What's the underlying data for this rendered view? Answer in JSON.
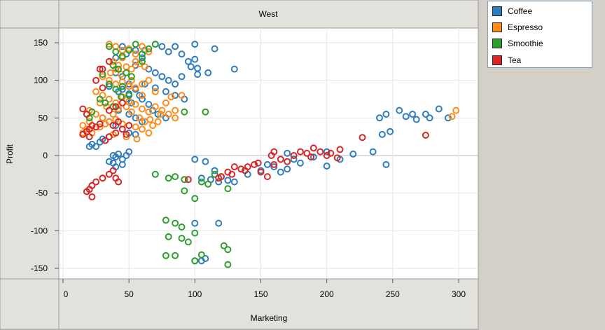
{
  "chart_data": {
    "type": "scatter",
    "title": "West",
    "xlabel": "Marketing",
    "ylabel": "Profit",
    "xlim": [
      0,
      310
    ],
    "ylim": [
      -155,
      155
    ],
    "x_ticks": [
      0,
      50,
      100,
      150,
      200,
      250,
      300
    ],
    "y_ticks": [
      -150,
      -100,
      -50,
      0,
      50,
      100,
      150
    ],
    "grid": true,
    "legend_position": "top-right-outside",
    "series": [
      {
        "name": "Coffee",
        "color": "#2e7dbd",
        "points": [
          [
            45,
            145
          ],
          [
            55,
            140
          ],
          [
            60,
            130
          ],
          [
            75,
            145
          ],
          [
            80,
            138
          ],
          [
            85,
            145
          ],
          [
            90,
            135
          ],
          [
            100,
            148
          ],
          [
            115,
            142
          ],
          [
            95,
            125
          ],
          [
            97,
            118
          ],
          [
            100,
            128
          ],
          [
            102,
            108
          ],
          [
            110,
            110
          ],
          [
            130,
            115
          ],
          [
            55,
            120
          ],
          [
            65,
            115
          ],
          [
            70,
            110
          ],
          [
            75,
            105
          ],
          [
            80,
            100
          ],
          [
            85,
            95
          ],
          [
            90,
            105
          ],
          [
            62,
            95
          ],
          [
            70,
            90
          ],
          [
            78,
            85
          ],
          [
            85,
            80
          ],
          [
            92,
            75
          ],
          [
            40,
            110
          ],
          [
            45,
            105
          ],
          [
            50,
            95
          ],
          [
            55,
            88
          ],
          [
            42,
            85
          ],
          [
            48,
            75
          ],
          [
            52,
            70
          ],
          [
            60,
            75
          ],
          [
            65,
            68
          ],
          [
            68,
            60
          ],
          [
            72,
            55
          ],
          [
            78,
            50
          ],
          [
            38,
            65
          ],
          [
            42,
            60
          ],
          [
            50,
            55
          ],
          [
            55,
            50
          ],
          [
            60,
            45
          ],
          [
            30,
            50
          ],
          [
            35,
            45
          ],
          [
            40,
            40
          ],
          [
            45,
            35
          ],
          [
            50,
            30
          ],
          [
            55,
            28
          ],
          [
            22,
            15
          ],
          [
            25,
            12
          ],
          [
            28,
            18
          ],
          [
            30,
            22
          ],
          [
            35,
            25
          ],
          [
            20,
            12
          ],
          [
            38,
            0
          ],
          [
            40,
            -2
          ],
          [
            42,
            2
          ],
          [
            45,
            -5
          ],
          [
            48,
            0
          ],
          [
            50,
            5
          ],
          [
            38,
            -10
          ],
          [
            40,
            -15
          ],
          [
            45,
            -12
          ],
          [
            35,
            -8
          ],
          [
            100,
            -5
          ],
          [
            108,
            -8
          ],
          [
            115,
            -20
          ],
          [
            120,
            -28
          ],
          [
            125,
            -33
          ],
          [
            105,
            -30
          ],
          [
            112,
            -32
          ],
          [
            118,
            -35
          ],
          [
            130,
            -35
          ],
          [
            140,
            -25
          ],
          [
            150,
            -20
          ],
          [
            160,
            -15
          ],
          [
            170,
            -18
          ],
          [
            165,
            -22
          ],
          [
            175,
            -5
          ],
          [
            180,
            -10
          ],
          [
            190,
            -2
          ],
          [
            200,
            5
          ],
          [
            210,
            -5
          ],
          [
            220,
            2
          ],
          [
            235,
            5
          ],
          [
            245,
            -12
          ],
          [
            170,
            3
          ],
          [
            155,
            -12
          ],
          [
            200,
            -14
          ],
          [
            100,
            -90
          ],
          [
            118,
            -90
          ],
          [
            100,
            -140
          ],
          [
            105,
            -140
          ],
          [
            108,
            -137
          ],
          [
            240,
            50
          ],
          [
            245,
            55
          ],
          [
            255,
            60
          ],
          [
            260,
            52
          ],
          [
            265,
            55
          ],
          [
            268,
            48
          ],
          [
            275,
            55
          ],
          [
            278,
            50
          ],
          [
            285,
            62
          ],
          [
            292,
            50
          ],
          [
            242,
            28
          ],
          [
            248,
            32
          ],
          [
            45,
            88
          ],
          [
            50,
            82
          ],
          [
            58,
            80
          ],
          [
            35,
            92
          ],
          [
            40,
            130
          ],
          [
            48,
            135
          ],
          [
            62,
            140
          ],
          [
            70,
            148
          ],
          [
            102,
            116
          ]
        ]
      },
      {
        "name": "Espresso",
        "color": "#ff8c1a",
        "points": [
          [
            35,
            148
          ],
          [
            40,
            145
          ],
          [
            45,
            140
          ],
          [
            50,
            142
          ],
          [
            55,
            135
          ],
          [
            60,
            145
          ],
          [
            65,
            138
          ],
          [
            38,
            125
          ],
          [
            42,
            120
          ],
          [
            48,
            118
          ],
          [
            52,
            115
          ],
          [
            58,
            122
          ],
          [
            62,
            118
          ],
          [
            30,
            105
          ],
          [
            35,
            100
          ],
          [
            40,
            95
          ],
          [
            45,
            98
          ],
          [
            50,
            92
          ],
          [
            55,
            90
          ],
          [
            60,
            95
          ],
          [
            65,
            100
          ],
          [
            25,
            85
          ],
          [
            30,
            80
          ],
          [
            35,
            75
          ],
          [
            40,
            70
          ],
          [
            45,
            78
          ],
          [
            50,
            72
          ],
          [
            55,
            68
          ],
          [
            60,
            62
          ],
          [
            65,
            58
          ],
          [
            70,
            65
          ],
          [
            75,
            60
          ],
          [
            80,
            55
          ],
          [
            85,
            50
          ],
          [
            20,
            60
          ],
          [
            25,
            55
          ],
          [
            30,
            50
          ],
          [
            35,
            45
          ],
          [
            40,
            48
          ],
          [
            45,
            42
          ],
          [
            50,
            40
          ],
          [
            55,
            38
          ],
          [
            60,
            35
          ],
          [
            65,
            30
          ],
          [
            15,
            40
          ],
          [
            18,
            35
          ],
          [
            22,
            30
          ],
          [
            28,
            38
          ],
          [
            32,
            42
          ],
          [
            38,
            55
          ],
          [
            42,
            62
          ],
          [
            48,
            65
          ],
          [
            52,
            58
          ],
          [
            58,
            50
          ],
          [
            62,
            45
          ],
          [
            68,
            40
          ],
          [
            72,
            45
          ],
          [
            78,
            70
          ],
          [
            82,
            78
          ],
          [
            85,
            60
          ],
          [
            90,
            80
          ],
          [
            295,
            52
          ],
          [
            298,
            60
          ],
          [
            45,
            130
          ],
          [
            55,
            125
          ],
          [
            40,
            115
          ],
          [
            28,
            70
          ],
          [
            33,
            65
          ],
          [
            60,
            80
          ],
          [
            70,
            85
          ],
          [
            15,
            30
          ],
          [
            20,
            45
          ],
          [
            36,
            110
          ],
          [
            44,
            108
          ],
          [
            52,
            100
          ],
          [
            66,
            48
          ],
          [
            74,
            55
          ],
          [
            48,
            25
          ],
          [
            56,
            22
          ],
          [
            38,
            28
          ]
        ]
      },
      {
        "name": "Smoothie",
        "color": "#2ca02c",
        "points": [
          [
            35,
            145
          ],
          [
            40,
            138
          ],
          [
            45,
            132
          ],
          [
            50,
            140
          ],
          [
            55,
            148
          ],
          [
            60,
            135
          ],
          [
            65,
            142
          ],
          [
            70,
            148
          ],
          [
            38,
            120
          ],
          [
            42,
            115
          ],
          [
            48,
            110
          ],
          [
            52,
            105
          ],
          [
            30,
            108
          ],
          [
            35,
            95
          ],
          [
            40,
            88
          ],
          [
            45,
            92
          ],
          [
            28,
            75
          ],
          [
            32,
            70
          ],
          [
            38,
            65
          ],
          [
            22,
            58
          ],
          [
            20,
            50
          ],
          [
            108,
            58
          ],
          [
            92,
            58
          ],
          [
            70,
            -25
          ],
          [
            80,
            -30
          ],
          [
            85,
            -28
          ],
          [
            92,
            -32
          ],
          [
            105,
            -35
          ],
          [
            110,
            -38
          ],
          [
            125,
            -44
          ],
          [
            115,
            -25
          ],
          [
            92,
            -47
          ],
          [
            100,
            -57
          ],
          [
            78,
            -86
          ],
          [
            85,
            -90
          ],
          [
            90,
            -95
          ],
          [
            80,
            -108
          ],
          [
            90,
            -110
          ],
          [
            95,
            -115
          ],
          [
            100,
            -103
          ],
          [
            122,
            -120
          ],
          [
            125,
            -125
          ],
          [
            105,
            -132
          ],
          [
            78,
            -133
          ],
          [
            85,
            -133
          ],
          [
            100,
            -140
          ],
          [
            125,
            -145
          ],
          [
            60,
            125
          ],
          [
            50,
            80
          ],
          [
            44,
            78
          ]
        ]
      },
      {
        "name": "Tea",
        "color": "#d62728",
        "points": [
          [
            15,
            28
          ],
          [
            18,
            32
          ],
          [
            20,
            35
          ],
          [
            22,
            40
          ],
          [
            25,
            38
          ],
          [
            28,
            42
          ],
          [
            18,
            55
          ],
          [
            15,
            62
          ],
          [
            20,
            25
          ],
          [
            35,
            25
          ],
          [
            40,
            30
          ],
          [
            45,
            35
          ],
          [
            50,
            40
          ],
          [
            38,
            40
          ],
          [
            42,
            45
          ],
          [
            35,
            60
          ],
          [
            40,
            65
          ],
          [
            45,
            70
          ],
          [
            30,
            90
          ],
          [
            25,
            100
          ],
          [
            30,
            115
          ],
          [
            35,
            125
          ],
          [
            20,
            -45
          ],
          [
            22,
            -40
          ],
          [
            25,
            -35
          ],
          [
            30,
            -30
          ],
          [
            35,
            -25
          ],
          [
            40,
            -30
          ],
          [
            42,
            -35
          ],
          [
            38,
            -20
          ],
          [
            22,
            -55
          ],
          [
            18,
            -48
          ],
          [
            95,
            -32
          ],
          [
            120,
            -28
          ],
          [
            125,
            -22
          ],
          [
            130,
            -15
          ],
          [
            135,
            -18
          ],
          [
            140,
            -15
          ],
          [
            145,
            -12
          ],
          [
            150,
            -22
          ],
          [
            155,
            -28
          ],
          [
            158,
            0
          ],
          [
            160,
            5
          ],
          [
            165,
            -5
          ],
          [
            170,
            -8
          ],
          [
            175,
            0
          ],
          [
            180,
            5
          ],
          [
            185,
            3
          ],
          [
            190,
            10
          ],
          [
            195,
            5
          ],
          [
            200,
            0
          ],
          [
            208,
            -3
          ],
          [
            210,
            8
          ],
          [
            227,
            24
          ],
          [
            275,
            27
          ],
          [
            128,
            -25
          ],
          [
            138,
            -20
          ],
          [
            148,
            -10
          ],
          [
            118,
            -30
          ],
          [
            160,
            -12
          ],
          [
            188,
            -2
          ],
          [
            203,
            3
          ],
          [
            48,
            28
          ],
          [
            32,
            20
          ],
          [
            28,
            115
          ]
        ]
      }
    ]
  }
}
